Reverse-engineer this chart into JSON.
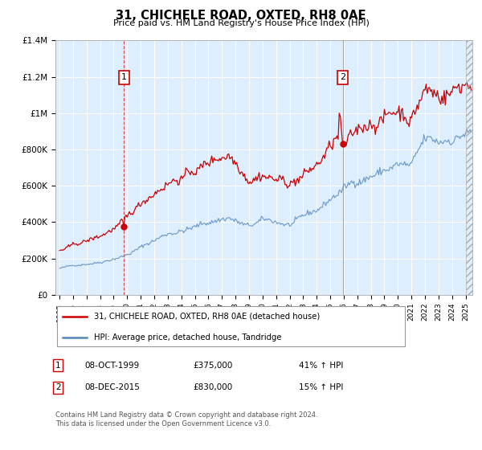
{
  "title": "31, CHICHELE ROAD, OXTED, RH8 0AE",
  "subtitle": "Price paid vs. HM Land Registry's House Price Index (HPI)",
  "legend_label_red": "31, CHICHELE ROAD, OXTED, RH8 0AE (detached house)",
  "legend_label_blue": "HPI: Average price, detached house, Tandridge",
  "transaction1_date": "08-OCT-1999",
  "transaction1_price": "£375,000",
  "transaction1_hpi": "41% ↑ HPI",
  "transaction2_date": "08-DEC-2015",
  "transaction2_price": "£830,000",
  "transaction2_hpi": "15% ↑ HPI",
  "footer": "Contains HM Land Registry data © Crown copyright and database right 2024.\nThis data is licensed under the Open Government Licence v3.0.",
  "red_color": "#cc0000",
  "blue_color": "#5588bb",
  "bg_fill_color": "#ddeeff",
  "ylim": [
    0,
    1400000
  ],
  "yticks": [
    0,
    200000,
    400000,
    600000,
    800000,
    1000000,
    1200000,
    1400000
  ],
  "ytick_labels": [
    "£0",
    "£200K",
    "£400K",
    "£600K",
    "£800K",
    "£1M",
    "£1.2M",
    "£1.4M"
  ],
  "transaction1_x": 1999.77,
  "transaction1_y": 375000,
  "transaction2_x": 2015.92,
  "transaction2_y": 830000,
  "xmin": 1995.0,
  "xmax": 2025.5
}
